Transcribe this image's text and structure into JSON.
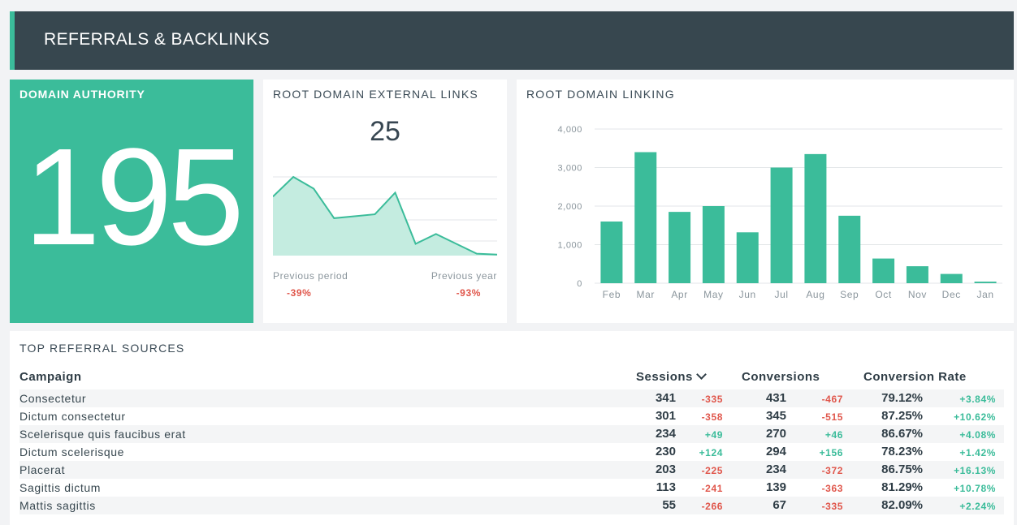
{
  "header": {
    "title": "REFERRALS & BACKLINKS"
  },
  "domain_authority": {
    "title": "DOMAIN AUTHORITY",
    "value": "195"
  },
  "external_links": {
    "title": "ROOT DOMAIN EXTERNAL LINKS",
    "value": "25",
    "previous_period_label": "Previous period",
    "previous_period_change": "-39%",
    "previous_year_label": "Previous year",
    "previous_year_change": "-93%",
    "sparkline": [
      30,
      40,
      34,
      19,
      20,
      21,
      32,
      6,
      11,
      6,
      1,
      0.5
    ]
  },
  "root_domain_linking": {
    "title": "ROOT DOMAIN LINKING",
    "chart_data": {
      "type": "bar",
      "categories": [
        "Feb",
        "Mar",
        "Apr",
        "May",
        "Jun",
        "Jul",
        "Aug",
        "Sep",
        "Oct",
        "Nov",
        "Dec",
        "Jan"
      ],
      "values": [
        1600,
        3400,
        1850,
        2000,
        1320,
        3000,
        3350,
        1750,
        640,
        440,
        240,
        40
      ],
      "ylim": [
        0,
        4000
      ],
      "yticks": [
        "0",
        "1,000",
        "2,000",
        "3,000",
        "4,000"
      ],
      "grid": true,
      "color": "#3bbc9a"
    }
  },
  "referral_sources": {
    "title": "TOP REFERRAL SOURCES",
    "headers": {
      "campaign": "Campaign",
      "sessions": "Sessions",
      "conversions": "Conversions",
      "rate": "Conversion Rate"
    },
    "rows": [
      {
        "campaign": "Consectetur",
        "sessions": "341",
        "sessions_change": "-335",
        "conversions": "431",
        "conversions_change": "-467",
        "rate": "79.12%",
        "rate_change": "+3.84%"
      },
      {
        "campaign": "Dictum consectetur",
        "sessions": "301",
        "sessions_change": "-358",
        "conversions": "345",
        "conversions_change": "-515",
        "rate": "87.25%",
        "rate_change": "+10.62%"
      },
      {
        "campaign": "Scelerisque quis faucibus erat",
        "sessions": "234",
        "sessions_change": "+49",
        "conversions": "270",
        "conversions_change": "+46",
        "rate": "86.67%",
        "rate_change": "+4.08%"
      },
      {
        "campaign": "Dictum scelerisque",
        "sessions": "230",
        "sessions_change": "+124",
        "conversions": "294",
        "conversions_change": "+156",
        "rate": "78.23%",
        "rate_change": "+1.42%"
      },
      {
        "campaign": "Placerat",
        "sessions": "203",
        "sessions_change": "-225",
        "conversions": "234",
        "conversions_change": "-372",
        "rate": "86.75%",
        "rate_change": "+16.13%"
      },
      {
        "campaign": "Sagittis dictum",
        "sessions": "113",
        "sessions_change": "-241",
        "conversions": "139",
        "conversions_change": "-363",
        "rate": "81.29%",
        "rate_change": "+10.78%"
      },
      {
        "campaign": "Mattis sagittis",
        "sessions": "55",
        "sessions_change": "-266",
        "conversions": "67",
        "conversions_change": "-335",
        "rate": "82.09%",
        "rate_change": "+2.24%"
      }
    ]
  },
  "colors": {
    "accent": "#3bbc9a",
    "header_bg": "#37474f",
    "negative": "#e0564b",
    "positive": "#3bbc9a"
  }
}
